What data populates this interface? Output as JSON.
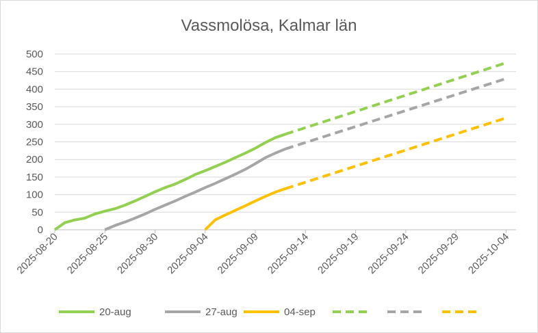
{
  "chart_data": {
    "type": "line",
    "title": "Vassmolösa,  Kalmar län",
    "xlabel": "",
    "ylabel": "",
    "ylim": [
      0,
      500
    ],
    "y_ticks": [
      0,
      50,
      100,
      150,
      200,
      250,
      300,
      350,
      400,
      450,
      500
    ],
    "xlim": [
      "2025-08-20",
      "2025-10-05"
    ],
    "x_ticks": [
      "2025-08-20",
      "2025-08-25",
      "2025-08-30",
      "2025-09-04",
      "2025-09-09",
      "2025-09-14",
      "2025-09-19",
      "2025-09-24",
      "2025-09-29",
      "2025-10-04"
    ],
    "grid": "horizontal",
    "legend_position": "bottom",
    "series": [
      {
        "name": "20-aug",
        "color": "#92d050",
        "style": "solid",
        "x": [
          "2025-08-20",
          "2025-08-21",
          "2025-08-22",
          "2025-08-23",
          "2025-08-24",
          "2025-08-25",
          "2025-08-26",
          "2025-08-27",
          "2025-08-28",
          "2025-08-29",
          "2025-08-30",
          "2025-08-31",
          "2025-09-01",
          "2025-09-02",
          "2025-09-03",
          "2025-09-04",
          "2025-09-05",
          "2025-09-06",
          "2025-09-07",
          "2025-09-08",
          "2025-09-09",
          "2025-09-10",
          "2025-09-11",
          "2025-09-12"
        ],
        "y": [
          0,
          20,
          28,
          33,
          45,
          53,
          60,
          70,
          82,
          95,
          108,
          120,
          130,
          143,
          157,
          168,
          180,
          192,
          205,
          218,
          232,
          248,
          262,
          272
        ]
      },
      {
        "name": "27-aug",
        "color": "#a6a6a6",
        "style": "solid",
        "x": [
          "2025-08-25",
          "2025-08-26",
          "2025-08-27",
          "2025-08-28",
          "2025-08-29",
          "2025-08-30",
          "2025-08-31",
          "2025-09-01",
          "2025-09-02",
          "2025-09-03",
          "2025-09-04",
          "2025-09-05",
          "2025-09-06",
          "2025-09-07",
          "2025-09-08",
          "2025-09-09",
          "2025-09-10",
          "2025-09-11",
          "2025-09-12"
        ],
        "y": [
          0,
          12,
          22,
          33,
          45,
          58,
          70,
          82,
          95,
          107,
          120,
          132,
          145,
          158,
          172,
          188,
          205,
          218,
          230
        ]
      },
      {
        "name": "04-sep",
        "color": "#ffc000",
        "style": "solid",
        "x": [
          "2025-09-04",
          "2025-09-05",
          "2025-09-06",
          "2025-09-07",
          "2025-09-08",
          "2025-09-09",
          "2025-09-10",
          "2025-09-11",
          "2025-09-12"
        ],
        "y": [
          0,
          28,
          42,
          55,
          68,
          82,
          95,
          107,
          117
        ]
      },
      {
        "name": "",
        "color": "#92d050",
        "style": "dashed",
        "x": [
          "2025-09-12",
          "2025-10-04"
        ],
        "y": [
          272,
          475
        ]
      },
      {
        "name": "",
        "color": "#a6a6a6",
        "style": "dashed",
        "x": [
          "2025-09-12",
          "2025-10-04"
        ],
        "y": [
          230,
          430
        ]
      },
      {
        "name": "",
        "color": "#ffc000",
        "style": "dashed",
        "x": [
          "2025-09-12",
          "2025-10-04"
        ],
        "y": [
          117,
          318
        ]
      }
    ]
  }
}
